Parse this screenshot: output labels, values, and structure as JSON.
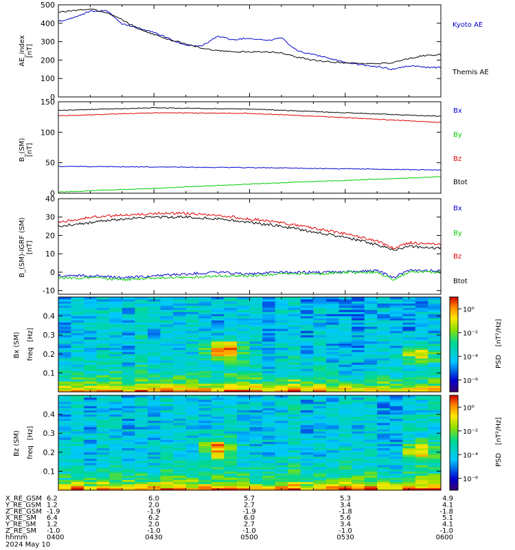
{
  "panels": {
    "ae": {
      "ylabel": "AE_index",
      "unit": "[nT]",
      "legend": [
        {
          "label": "Kyoto AE",
          "color": "#0000cc"
        },
        {
          "label": "Themis AE",
          "color": "#000000"
        }
      ]
    },
    "bsm": {
      "ylabel": "B_(SM)",
      "unit": "[nT]",
      "legend": [
        {
          "label": "Bx",
          "color": "#0000cc"
        },
        {
          "label": "By",
          "color": "#00cc00"
        },
        {
          "label": "Bz",
          "color": "#dd0000"
        },
        {
          "label": "Btot",
          "color": "#000000"
        }
      ]
    },
    "bdiff": {
      "ylabel": "B_(SM)-IGRF (SM)",
      "unit": "[nT]",
      "legend": [
        {
          "label": "Bx",
          "color": "#0000cc"
        },
        {
          "label": "By",
          "color": "#00cc00"
        },
        {
          "label": "Bz",
          "color": "#dd0000"
        },
        {
          "label": "Btot",
          "color": "#000000"
        }
      ]
    },
    "spec_bx": {
      "ylabel": "Bx (SM)",
      "ylabel2": "freq",
      "unit": "[Hz]",
      "cb_label": "PSD",
      "cb_unit": "[nT²/Hz]"
    },
    "spec_bz": {
      "ylabel": "Bz (SM)",
      "ylabel2": "freq",
      "unit": "[Hz]",
      "cb_label": "PSD",
      "cb_unit": "[nT²/Hz]"
    }
  },
  "ephemeris": {
    "rows": [
      {
        "label": "X_RE_GSM",
        "values": [
          "6.2",
          "6.0",
          "5.7",
          "5.3",
          "4.9"
        ]
      },
      {
        "label": "Y_RE_GSM",
        "values": [
          "1.2",
          "2.0",
          "2.7",
          "3.4",
          "4.1"
        ]
      },
      {
        "label": "Z_RE_GSM",
        "values": [
          "-1.9",
          "-1.9",
          "-1.9",
          "-1.8",
          "-1.8"
        ]
      },
      {
        "label": "X_RE_SM",
        "values": [
          "6.4",
          "6.2",
          "6.0",
          "5.6",
          "5.1"
        ]
      },
      {
        "label": "Y_RE_SM",
        "values": [
          "1.2",
          "2.0",
          "2.7",
          "3.4",
          "4.1"
        ]
      },
      {
        "label": "Z_RE_SM",
        "values": [
          "-1.0",
          "-1.0",
          "-1.0",
          "-1.0",
          "-1.0"
        ]
      },
      {
        "label": "hhmm",
        "values": [
          "0400",
          "0430",
          "0500",
          "0530",
          "0600"
        ]
      }
    ],
    "date": "2024 May 10"
  },
  "chart_data": [
    {
      "type": "line",
      "x_unit": "minutes after 04:00",
      "x_range": [
        0,
        120
      ],
      "ylim": [
        0,
        500
      ],
      "yticks": [
        0,
        100,
        200,
        300,
        400,
        500
      ],
      "series": [
        {
          "name": "Kyoto AE",
          "color": "#0000cc",
          "x": [
            0,
            5,
            10,
            15,
            20,
            25,
            30,
            35,
            40,
            45,
            50,
            55,
            60,
            65,
            70,
            75,
            80,
            85,
            90,
            95,
            100,
            105,
            110,
            115,
            120
          ],
          "y": [
            410,
            430,
            465,
            470,
            395,
            375,
            350,
            315,
            280,
            275,
            330,
            310,
            320,
            305,
            320,
            250,
            230,
            210,
            185,
            175,
            165,
            150,
            170,
            160,
            160
          ]
        },
        {
          "name": "Themis AE",
          "color": "#000000",
          "x": [
            0,
            5,
            10,
            15,
            20,
            25,
            30,
            35,
            40,
            45,
            50,
            55,
            60,
            65,
            70,
            75,
            80,
            85,
            90,
            95,
            100,
            105,
            110,
            115,
            120
          ],
          "y": [
            460,
            470,
            480,
            455,
            420,
            370,
            340,
            310,
            290,
            265,
            250,
            245,
            245,
            245,
            240,
            215,
            200,
            190,
            185,
            180,
            180,
            185,
            210,
            225,
            230
          ]
        }
      ]
    },
    {
      "type": "line",
      "x_unit": "minutes after 04:00",
      "x_range": [
        0,
        120
      ],
      "ylim": [
        0,
        150
      ],
      "yticks": [
        0,
        50,
        100,
        150
      ],
      "series": [
        {
          "name": "Bx",
          "color": "#0000cc",
          "x": [
            0,
            30,
            60,
            90,
            120
          ],
          "y": [
            44,
            43,
            42,
            40,
            38
          ]
        },
        {
          "name": "By",
          "color": "#00cc00",
          "x": [
            0,
            30,
            60,
            90,
            120
          ],
          "y": [
            2,
            8,
            15,
            21,
            27
          ]
        },
        {
          "name": "Bz",
          "color": "#dd0000",
          "x": [
            0,
            30,
            60,
            90,
            120
          ],
          "y": [
            127,
            132,
            131,
            124,
            116
          ]
        },
        {
          "name": "Btot",
          "color": "#000000",
          "x": [
            0,
            30,
            60,
            90,
            120
          ],
          "y": [
            136,
            140,
            138,
            132,
            126
          ]
        }
      ]
    },
    {
      "type": "line",
      "x_unit": "minutes after 04:00",
      "x_range": [
        0,
        120
      ],
      "ylim": [
        -12,
        40
      ],
      "yticks": [
        -10,
        0,
        10,
        20,
        30,
        40
      ],
      "series": [
        {
          "name": "Bx",
          "color": "#0000cc",
          "x": [
            0,
            10,
            20,
            30,
            40,
            50,
            60,
            70,
            80,
            90,
            100,
            105,
            110,
            120
          ],
          "y": [
            -2,
            -2,
            -3,
            -2,
            -1,
            0,
            -1,
            0,
            0,
            0,
            1,
            -3,
            1,
            1
          ]
        },
        {
          "name": "By",
          "color": "#00cc00",
          "x": [
            0,
            10,
            20,
            30,
            40,
            50,
            60,
            70,
            80,
            90,
            100,
            105,
            110,
            120
          ],
          "y": [
            -3,
            -3,
            -4,
            -3,
            -3,
            -2,
            -2,
            -1,
            -1,
            0,
            0,
            -4,
            0,
            0
          ]
        },
        {
          "name": "Bz",
          "color": "#dd0000",
          "x": [
            0,
            10,
            20,
            30,
            40,
            50,
            60,
            70,
            80,
            90,
            95,
            100,
            105,
            110,
            120
          ],
          "y": [
            27,
            30,
            31,
            32,
            32,
            31,
            29,
            27,
            24,
            21,
            19,
            17,
            13,
            16,
            15
          ]
        },
        {
          "name": "Btot",
          "color": "#000000",
          "x": [
            0,
            10,
            20,
            30,
            40,
            50,
            60,
            70,
            80,
            90,
            95,
            100,
            105,
            110,
            120
          ],
          "y": [
            25,
            27,
            29,
            30,
            30,
            29,
            27,
            25,
            22,
            19,
            17,
            15,
            12,
            14,
            13
          ]
        }
      ]
    },
    {
      "type": "heatmap",
      "x_unit": "minutes after 04:00",
      "x_range": [
        0,
        120
      ],
      "ylim": [
        0,
        0.5
      ],
      "yticks": [
        0.1,
        0.2,
        0.3,
        0.4
      ],
      "z_scale": "log10 PSD",
      "zlim": [
        -7,
        1
      ],
      "colorbar_ticks": [
        "10⁰",
        "10⁻²",
        "10⁻⁴",
        "10⁻⁶"
      ],
      "enhancements": [
        {
          "t": 52,
          "f": 0.22,
          "level": 1.8
        },
        {
          "t": 113,
          "f": 0.2,
          "level": 1.3
        }
      ]
    },
    {
      "type": "heatmap",
      "x_unit": "minutes after 04:00",
      "x_range": [
        0,
        120
      ],
      "ylim": [
        0,
        0.5
      ],
      "yticks": [
        0.1,
        0.2,
        0.3,
        0.4
      ],
      "z_scale": "log10 PSD",
      "zlim": [
        -7,
        1
      ],
      "colorbar_ticks": [
        "10⁰",
        "10⁻²",
        "10⁻⁴",
        "10⁻⁶"
      ],
      "enhancements": [
        {
          "t": 50,
          "f": 0.22,
          "level": 1.4
        },
        {
          "t": 113,
          "f": 0.2,
          "level": 1.1
        }
      ]
    }
  ]
}
